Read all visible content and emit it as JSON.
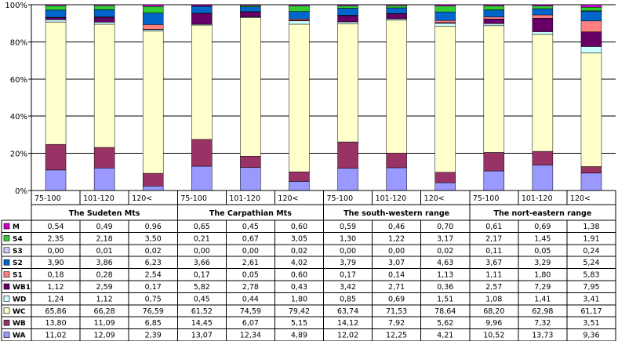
{
  "chart_data": {
    "type": "bar",
    "stacked": true,
    "percent_stacked": true,
    "y_tick_labels": [
      "0%",
      "20%",
      "40%",
      "60%",
      "80%",
      "100%"
    ],
    "ylim": [
      0,
      100
    ],
    "grid": true,
    "legend_placement": "left of data table",
    "categories": [
      "75-100",
      "101-120",
      "120<",
      "75-100",
      "101-120",
      "120<",
      "75-100",
      "101-120",
      "120<",
      "75-100",
      "101-120",
      "120<"
    ],
    "groups": [
      "The Sudeten Mts",
      "The Carpathian Mts",
      "The south-western range",
      "The nort-eastern range"
    ],
    "series": [
      {
        "name": "WA",
        "color": "#9999FF",
        "values": [
          "11,02",
          "12,09",
          "2,39",
          "13,07",
          "12,34",
          "4,89",
          "12,02",
          "12,25",
          "4,21",
          "10,52",
          "13,73",
          "9,36"
        ]
      },
      {
        "name": "WB",
        "color": "#993366",
        "values": [
          "13,80",
          "11,09",
          "6,85",
          "14,45",
          "6,07",
          "5,15",
          "14,12",
          "7,92",
          "5,62",
          "9,96",
          "7,32",
          "3,51"
        ]
      },
      {
        "name": "WC",
        "color": "#FFFFCC",
        "values": [
          "65,86",
          "66,28",
          "76,59",
          "61,52",
          "74,59",
          "79,42",
          "63,74",
          "71,53",
          "78,64",
          "68,20",
          "62,98",
          "61,17"
        ]
      },
      {
        "name": "WD",
        "color": "#CCFFFF",
        "values": [
          "1,24",
          "1,12",
          "0,75",
          "0,45",
          "0,44",
          "1,80",
          "0,85",
          "0,69",
          "1,51",
          "1,08",
          "1,41",
          "3,41"
        ]
      },
      {
        "name": "WB1",
        "color": "#660066",
        "values": [
          "1,12",
          "2,59",
          "0,17",
          "5,82",
          "2,78",
          "0,43",
          "3,42",
          "2,71",
          "0,36",
          "2,57",
          "7,29",
          "7,95"
        ]
      },
      {
        "name": "S1",
        "color": "#FF8080",
        "values": [
          "0,18",
          "0,28",
          "2,54",
          "0,17",
          "0,05",
          "0,60",
          "0,17",
          "0,14",
          "1,13",
          "1,11",
          "1,80",
          "5,83"
        ]
      },
      {
        "name": "S2",
        "color": "#0066CC",
        "values": [
          "3,90",
          "3,86",
          "6,23",
          "3,66",
          "2,61",
          "4,02",
          "3,79",
          "3,07",
          "4,63",
          "3,67",
          "3,29",
          "5,24"
        ]
      },
      {
        "name": "S3",
        "color": "#CCCCFF",
        "values": [
          "0,00",
          "0,01",
          "0,02",
          "0,00",
          "0,00",
          "0,02",
          "0,00",
          "0,00",
          "0,02",
          "0,11",
          "0,05",
          "0,24"
        ]
      },
      {
        "name": "S4",
        "color": "#33CC33",
        "values": [
          "2,35",
          "2,18",
          "3,50",
          "0,21",
          "0,67",
          "3,05",
          "1,30",
          "1,22",
          "3,17",
          "2,17",
          "1,45",
          "1,91"
        ]
      },
      {
        "name": "M",
        "color": "#CC00CC",
        "values": [
          "0,54",
          "0,49",
          "0,96",
          "0,65",
          "0,45",
          "0,60",
          "0,59",
          "0,46",
          "0,70",
          "0,61",
          "0,69",
          "1,38"
        ]
      }
    ]
  }
}
